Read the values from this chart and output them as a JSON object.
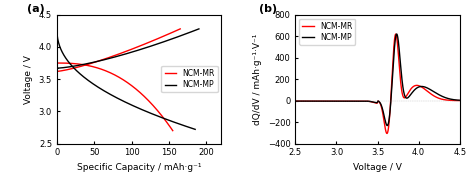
{
  "panel_a": {
    "title": "(a)",
    "xlabel": "Specific Capacity / mAh·g⁻¹",
    "ylabel": "Voltage / V",
    "xlim": [
      0,
      220
    ],
    "ylim": [
      2.5,
      4.5
    ],
    "xticks": [
      0,
      50,
      100,
      150,
      200
    ],
    "yticks": [
      2.5,
      3.0,
      3.5,
      4.0,
      4.5
    ],
    "legend": [
      "NCM-MR",
      "NCM-MP"
    ],
    "colors": [
      "#ff0000",
      "#000000"
    ]
  },
  "panel_b": {
    "title": "(b)",
    "xlabel": "Voltage / V",
    "ylabel": "dQ/dV / mAh·g⁻¹·V⁻¹",
    "xlim": [
      2.5,
      4.5
    ],
    "ylim": [
      -400,
      800
    ],
    "xticks": [
      2.5,
      3.0,
      3.5,
      4.0,
      4.5
    ],
    "yticks": [
      -400,
      -200,
      0,
      200,
      400,
      600,
      800
    ],
    "legend": [
      "NCM-MR",
      "NCM-MP"
    ],
    "colors": [
      "#ff0000",
      "#000000"
    ]
  }
}
